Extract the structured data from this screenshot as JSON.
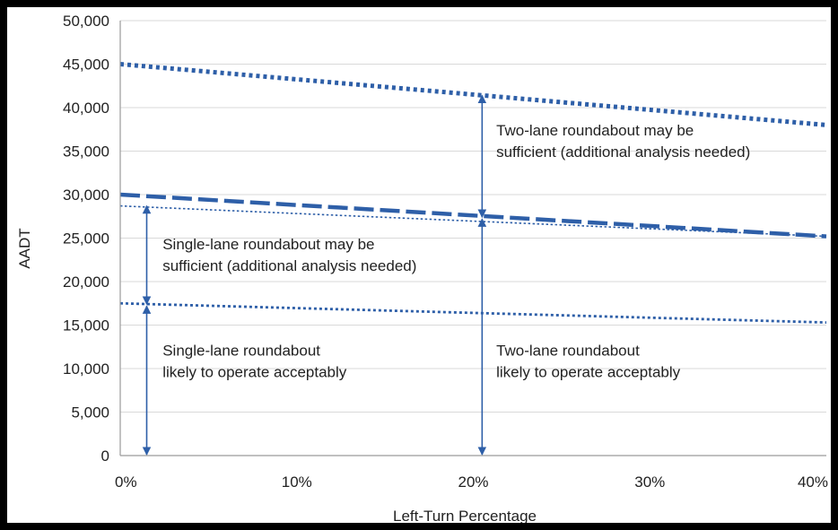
{
  "chart_data": {
    "type": "line",
    "title": "",
    "xlabel": "Left-Turn Percentage",
    "ylabel": "AADT",
    "xlim": [
      0,
      40
    ],
    "ylim": [
      0,
      50000
    ],
    "x_ticks": [
      "0%",
      "10%",
      "20%",
      "30%",
      "40%"
    ],
    "x_tick_values": [
      0,
      10,
      20,
      30,
      40
    ],
    "y_ticks": [
      "0",
      "5,000",
      "10,000",
      "15,000",
      "20,000",
      "25,000",
      "30,000",
      "35,000",
      "40,000",
      "45,000",
      "50,000"
    ],
    "y_tick_values": [
      0,
      5000,
      10000,
      15000,
      20000,
      25000,
      30000,
      35000,
      40000,
      45000,
      50000
    ],
    "grid": "horizontal",
    "series": [
      {
        "style": "thick-dotted",
        "color": "#2e5fa8",
        "x": [
          0,
          40
        ],
        "y": [
          45000,
          38000
        ]
      },
      {
        "style": "thick-dashed",
        "color": "#2e5fa8",
        "x": [
          0,
          40
        ],
        "y": [
          30000,
          25200
        ]
      },
      {
        "style": "thin-dotted",
        "color": "#2e5fa8",
        "x": [
          0,
          40
        ],
        "y": [
          28700,
          25200
        ]
      },
      {
        "style": "medium-dotted",
        "color": "#2e5fa8",
        "x": [
          0,
          40
        ],
        "y": [
          17500,
          15300
        ]
      }
    ],
    "arrows": [
      {
        "x": 1.5,
        "y_from": 0,
        "y_to": 17300
      },
      {
        "x": 1.5,
        "y_from": 17300,
        "y_to": 28800
      },
      {
        "x": 20.5,
        "y_from": 0,
        "y_to": 27300
      },
      {
        "x": 20.5,
        "y_from": 27300,
        "y_to": 41500
      }
    ],
    "annotations": [
      {
        "lines": [
          "Two-lane roundabout may be",
          "sufficient (additional analysis needed)"
        ],
        "x": 21.3,
        "y": 36800
      },
      {
        "lines": [
          "Single-lane roundabout may be",
          "sufficient (additional analysis needed)"
        ],
        "x": 2.4,
        "y": 23700
      },
      {
        "lines": [
          "Single-lane roundabout",
          "likely to operate acceptably"
        ],
        "x": 2.4,
        "y": 11500
      },
      {
        "lines": [
          "Two-lane roundabout",
          "likely to operate acceptably"
        ],
        "x": 21.3,
        "y": 11500
      }
    ],
    "colors": {
      "series": "#2e5fa8",
      "arrow": "#2e5fa8",
      "grid": "#d9d9d9",
      "axis": "#9a9a9a"
    }
  }
}
